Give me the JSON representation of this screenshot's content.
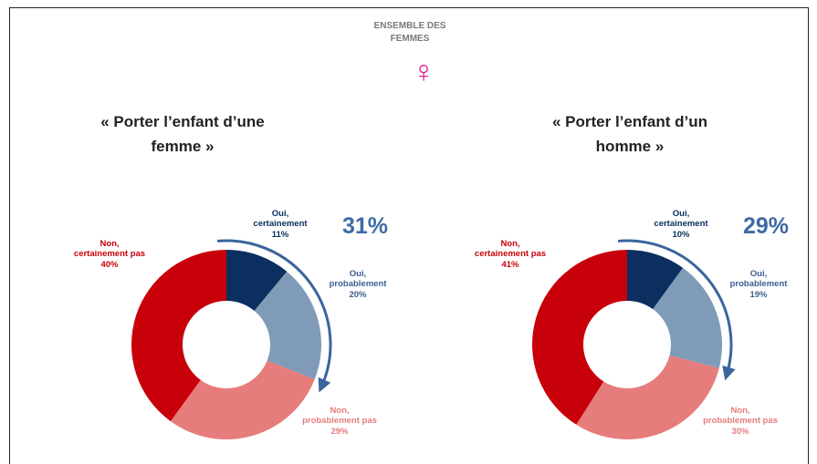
{
  "header": {
    "title": "ENSEMBLE DES FEMMES",
    "symbol": "♀"
  },
  "chart_data": [
    {
      "type": "donut",
      "title": "« Porter l’enfant d’une femme »",
      "categories": [
        "Oui, certainement",
        "Oui, probablement",
        "Non, probablement pas",
        "Non, certainement pas"
      ],
      "values": [
        11,
        20,
        29,
        40
      ],
      "value_labels": [
        "11%",
        "20%",
        "29%",
        "40%"
      ],
      "colors": [
        "#0b3060",
        "#7f9bb8",
        "#e67c7c",
        "#c8000a"
      ],
      "annotation": {
        "value": 31,
        "label": "31%"
      }
    },
    {
      "type": "donut",
      "title": "« Porter l’enfant d’un homme »",
      "categories": [
        "Oui, certainement",
        "Oui, probablement",
        "Non, probablement pas",
        "Non, certainement pas"
      ],
      "values": [
        10,
        19,
        30,
        41
      ],
      "value_labels": [
        "10%",
        "19%",
        "30%",
        "41%"
      ],
      "colors": [
        "#0b3060",
        "#7f9bb8",
        "#e67c7c",
        "#c8000a"
      ],
      "annotation": {
        "value": 29,
        "label": "29%"
      }
    }
  ]
}
